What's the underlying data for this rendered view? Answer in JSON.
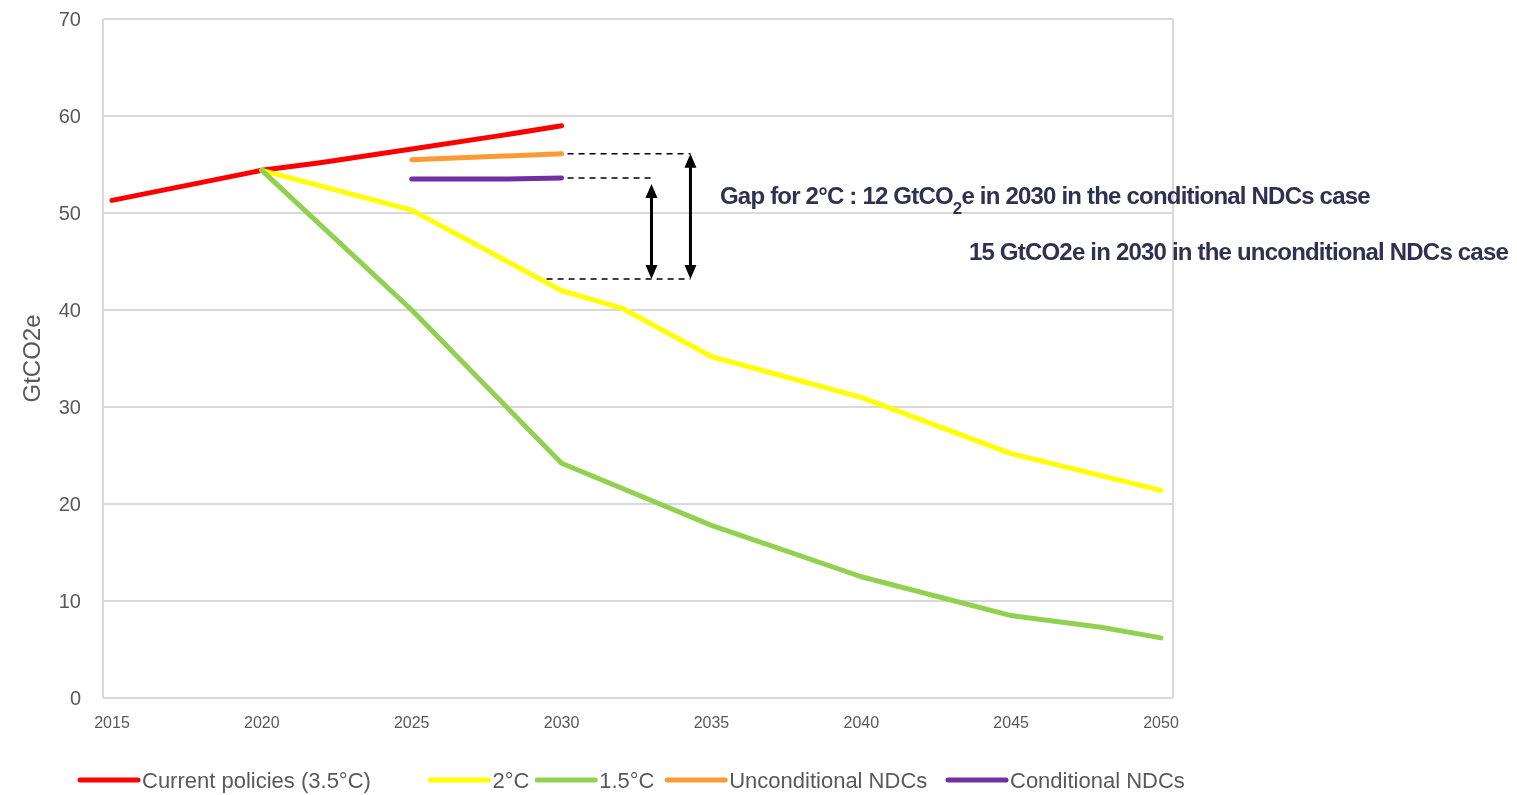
{
  "chart_data": {
    "type": "line",
    "ylabel": "GtCO2e",
    "xlim": [
      2014.7,
      2050.4
    ],
    "ylim": [
      0,
      70
    ],
    "xticks": [
      2015,
      2020,
      2025,
      2030,
      2035,
      2040,
      2045,
      2050
    ],
    "yticks": [
      0,
      10,
      20,
      30,
      40,
      50,
      60,
      70
    ],
    "grid": "y",
    "legend": "bottom",
    "marker": "none",
    "line_style": "solid",
    "series": [
      {
        "name": "Current policies (3.5°C)",
        "color": "#ff0000",
        "x": [
          2015,
          2020,
          2022,
          2025,
          2028,
          2030
        ],
        "values": [
          51.3,
          54.4,
          55.2,
          56.6,
          58,
          59
        ]
      },
      {
        "name": "2°C",
        "color": "#ffff00",
        "x": [
          2020,
          2025,
          2030,
          2032,
          2035,
          2040,
          2045,
          2050
        ],
        "values": [
          54.4,
          50.3,
          42,
          40.2,
          35.2,
          31,
          25.2,
          21.4
        ]
      },
      {
        "name": "1.5°C",
        "color": "#92d050",
        "x": [
          2020,
          2025,
          2030,
          2035,
          2040,
          2045,
          2048,
          2050
        ],
        "values": [
          54.4,
          40,
          24.2,
          17.8,
          12.5,
          8.5,
          7.3,
          6.2
        ]
      },
      {
        "name": "Unconditional NDCs",
        "color": "#ff9933",
        "x": [
          2025,
          2030
        ],
        "values": [
          55.5,
          56.1
        ]
      },
      {
        "name": "Conditional NDCs",
        "color": "#7030a0",
        "x": [
          2025,
          2028,
          2030
        ],
        "values": [
          53.5,
          53.5,
          53.6
        ]
      }
    ],
    "annotations": [
      "Gap  for 2°C : 12 GtCO$_{2}$e in 2030 in the conditional NDCs case",
      "15 GtCO2e in 2030 in the unconditional NDCs case"
    ]
  }
}
